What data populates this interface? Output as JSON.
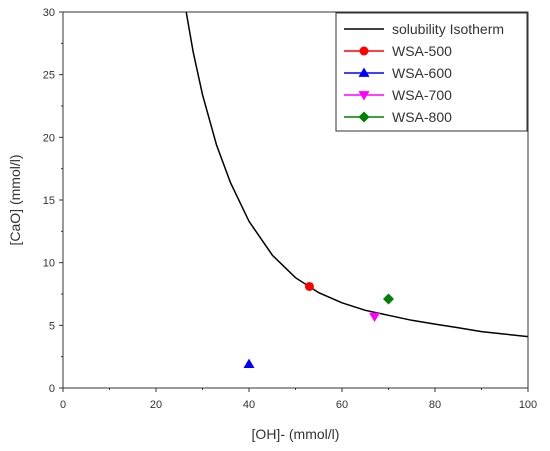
{
  "chart_data": {
    "type": "scatter",
    "xlabel": "[OH]- (mmol/l)",
    "ylabel": "[CaO] (mmol/l)",
    "xlim": [
      0,
      100
    ],
    "ylim": [
      0,
      30
    ],
    "xticks": [
      0,
      20,
      40,
      60,
      80,
      100
    ],
    "yticks": [
      0,
      5,
      10,
      15,
      20,
      25,
      30
    ],
    "grid": false,
    "legend_position": "top-right",
    "curve": {
      "name": "solubility Isotherm",
      "type": "line",
      "color": "#000000",
      "x": [
        26.5,
        28,
        30,
        33,
        36,
        40,
        45,
        50,
        55,
        60,
        65,
        70,
        75,
        80,
        85,
        90,
        95,
        100
      ],
      "y": [
        30.0,
        26.8,
        23.4,
        19.4,
        16.4,
        13.3,
        10.6,
        8.8,
        7.6,
        6.8,
        6.2,
        5.8,
        5.4,
        5.1,
        4.8,
        4.5,
        4.3,
        4.1
      ]
    },
    "series": [
      {
        "name": "WSA-500",
        "marker": "circle",
        "color": "#ff0000",
        "x": [
          53
        ],
        "y": [
          8.1
        ]
      },
      {
        "name": "WSA-600",
        "marker": "triangle-up",
        "color": "#0000ff",
        "x": [
          40
        ],
        "y": [
          1.9
        ]
      },
      {
        "name": "WSA-700",
        "marker": "triangle-down",
        "color": "#ff00ff",
        "x": [
          67
        ],
        "y": [
          5.7
        ]
      },
      {
        "name": "WSA-800",
        "marker": "diamond",
        "color": "#008000",
        "x": [
          70
        ],
        "y": [
          7.1
        ]
      }
    ]
  }
}
